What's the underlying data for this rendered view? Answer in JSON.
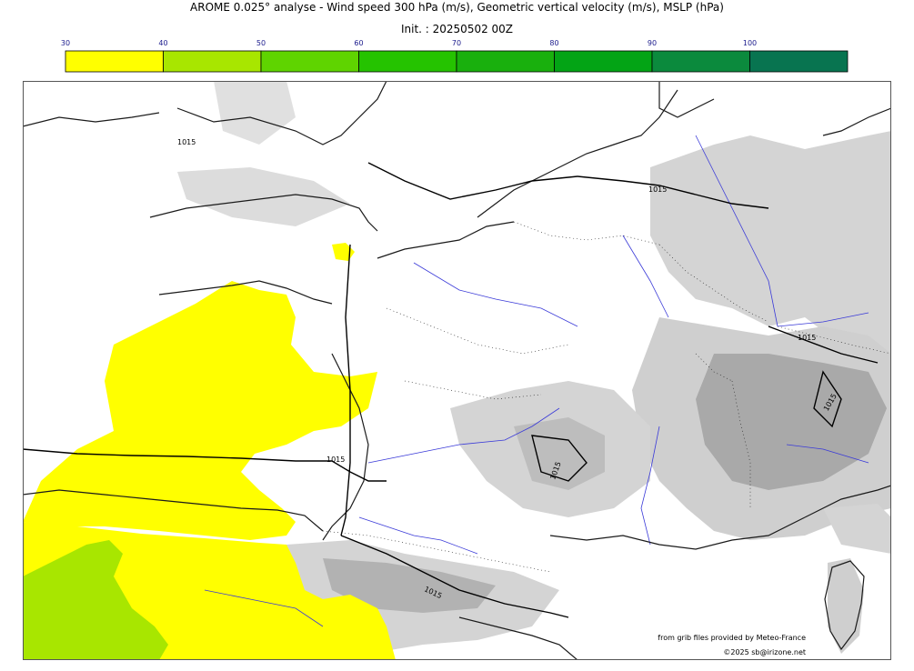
{
  "header": {
    "title": "AROME 0.025° analyse - Wind speed 300 hPa (m/s), Geometric vertical velocity (m/s), MSLP (hPa)",
    "init": "Init. : 20250502 00Z"
  },
  "colorbar": {
    "ticks": [
      "30",
      "40",
      "50",
      "60",
      "70",
      "80",
      "90",
      "100"
    ],
    "colors": [
      "#ffff00",
      "#a8e600",
      "#5fd400",
      "#25c300",
      "#19b00d",
      "#03a415",
      "#0b8a3d",
      "#087450"
    ],
    "tick_color": "#1a1a8c"
  },
  "map": {
    "pressure_labels": [
      "1015",
      "1015",
      "1015",
      "1015",
      "1015",
      "1015",
      "1015"
    ],
    "wind_speed_regions": [
      {
        "band": "30-40",
        "area": "Bay of Biscay / western approaches",
        "color": "#ffff00"
      },
      {
        "band": "30-40",
        "area": "Iberian peninsula north",
        "color": "#ffff00"
      },
      {
        "band": "40-50",
        "area": "northwest Iberia",
        "color": "#a8e600"
      },
      {
        "band": "30-40",
        "area": "Pyrenees east",
        "color": "#ffff00"
      },
      {
        "band": "30-40",
        "area": "Channel Islands",
        "color": "#ffff00"
      }
    ],
    "colors": {
      "land_outline": "#1a1a1a",
      "rivers": "#3a3ad8",
      "vertical_velocity_shade": "#d4d4d4",
      "vertical_velocity_dark": "#a9a9a9"
    }
  },
  "credits": {
    "source": "from grib files provided by Meteo-France",
    "copyright": "©2025 sb@irizone.net"
  }
}
